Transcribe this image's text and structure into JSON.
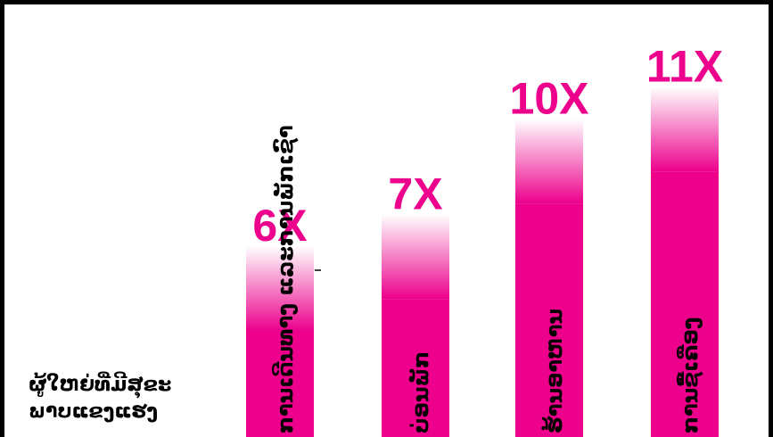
{
  "chart_data": {
    "type": "bar",
    "categories": [
      "ການເດີນທາງ ແລະການພັກເຊົາ",
      "ບ່ອນພັກ",
      "ຮ້ານອາຫານ",
      "ການຊື້ເຄື່ອງ"
    ],
    "values": [
      6,
      7,
      10,
      11
    ],
    "value_labels": [
      "6X",
      "7X",
      "10X",
      "11X"
    ],
    "reference_label": [
      "ຜູ້ໃຫຍ່ທີ່ມີສຸຂະ",
      "ພາບແຂງແຮງ"
    ],
    "title": "",
    "xlabel": "",
    "ylabel": "",
    "ylim": [
      0,
      12
    ],
    "grid": false,
    "legend": "none",
    "bar_color": "#ec008c",
    "label_color": "#ec008c",
    "frame_color": "#000000"
  }
}
